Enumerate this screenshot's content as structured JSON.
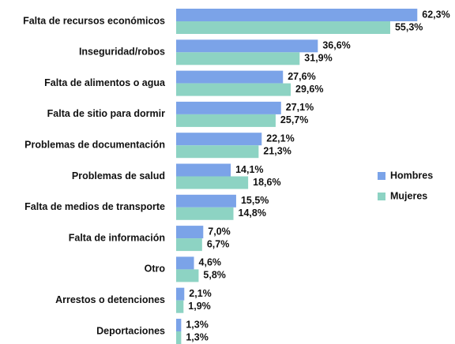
{
  "chart_data": {
    "type": "hbar",
    "categories": [
      "Falta de recursos económicos",
      "Inseguridad/robos",
      "Falta de alimentos o agua",
      "Falta de sitio para dormir",
      "Problemas de documentación",
      "Problemas de salud",
      "Falta de medios de transporte",
      "Falta de información",
      "Otro",
      "Arrestos o detenciones",
      "Deportaciones"
    ],
    "series": [
      {
        "name": "Hombres",
        "color": "#7ba3e8",
        "values": [
          62.3,
          36.6,
          27.6,
          27.1,
          22.1,
          14.1,
          15.5,
          7.0,
          4.6,
          2.1,
          1.3
        ],
        "value_labels": [
          "62,3%",
          "36,6%",
          "27,6%",
          "27,1%",
          "22,1%",
          "14,1%",
          "15,5%",
          "7,0%",
          "4,6%",
          "2,1%",
          "1,3%"
        ]
      },
      {
        "name": "Mujeres",
        "color": "#8dd3c3",
        "values": [
          55.3,
          31.9,
          29.6,
          25.7,
          21.3,
          18.6,
          14.8,
          6.7,
          5.8,
          1.9,
          1.3
        ],
        "value_labels": [
          "55,3%",
          "31,9%",
          "29,6%",
          "25,7%",
          "21,3%",
          "18,6%",
          "14,8%",
          "6,7%",
          "5,8%",
          "1,9%",
          "1,3%"
        ]
      }
    ],
    "legend": "right"
  }
}
